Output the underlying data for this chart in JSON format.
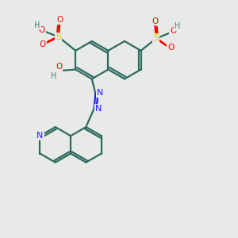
{
  "background_color": "#e8eae8",
  "bond_color": "#2d6b5e",
  "bond_width": 1.6,
  "N_color": "#1a1aff",
  "O_color": "#ff0000",
  "S_color": "#cccc00",
  "H_color": "#4a7a6e",
  "figsize": [
    3.0,
    3.0
  ],
  "dpi": 100,
  "xlim": [
    0,
    10
  ],
  "ylim": [
    0,
    10
  ]
}
